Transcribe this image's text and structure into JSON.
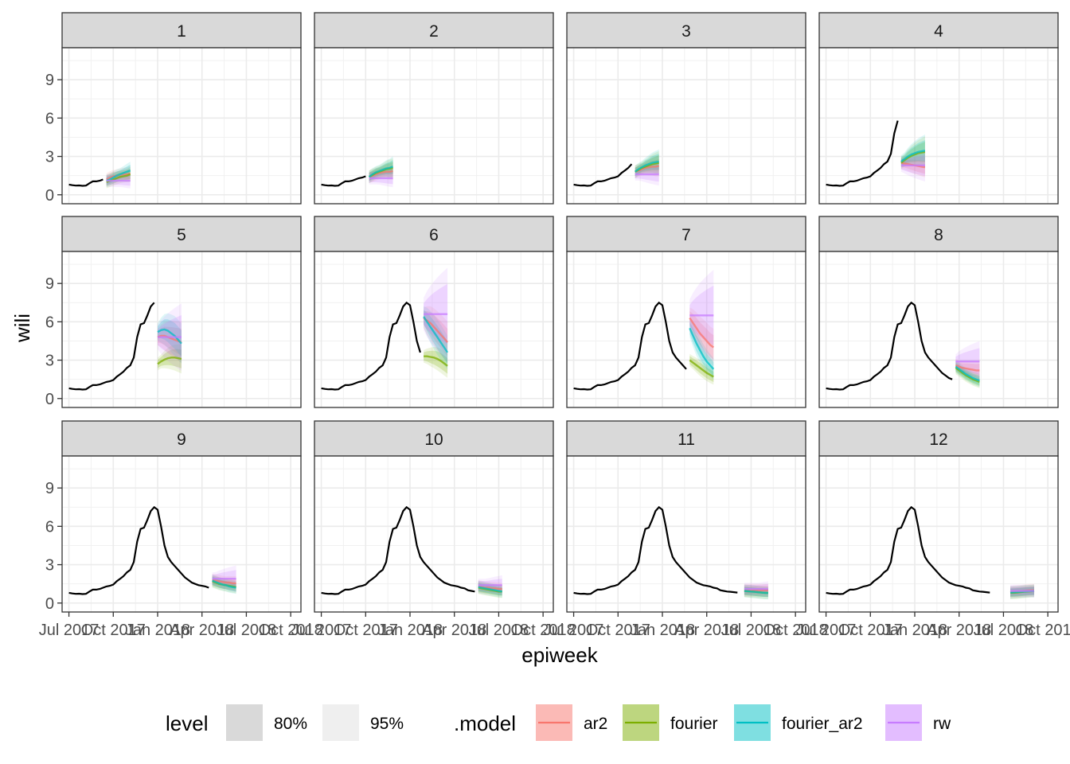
{
  "chart_data": {
    "type": "line",
    "xlabel": "epiweek",
    "ylabel": "wili",
    "x_ticks": [
      "Jul 2017",
      "Oct 2017",
      "Jan 2018",
      "Apr 2018",
      "Jul 2018",
      "Oct 2018"
    ],
    "y_ticks": [
      "0",
      "3",
      "6",
      "9"
    ],
    "ylim": [
      -0.7,
      11.5
    ],
    "xlim_weeks": [
      -2,
      68
    ],
    "grid": true,
    "legend_position": "bottom",
    "history": {
      "x_weeks": [
        0,
        1,
        2,
        3,
        4,
        5,
        6,
        7,
        8,
        9,
        10,
        11,
        12,
        13,
        14,
        15,
        16,
        17,
        18,
        19,
        20,
        21,
        22,
        23,
        24,
        25,
        26,
        27,
        28,
        29,
        30,
        31,
        32,
        33,
        34,
        35,
        36,
        37,
        38,
        39,
        40,
        41,
        42,
        43,
        44,
        45,
        46,
        47,
        48
      ],
      "wili": [
        0.8,
        0.75,
        0.72,
        0.73,
        0.7,
        0.72,
        0.9,
        1.05,
        1.05,
        1.1,
        1.2,
        1.3,
        1.35,
        1.45,
        1.7,
        1.9,
        2.1,
        2.4,
        2.6,
        3.2,
        4.8,
        5.8,
        5.9,
        6.5,
        7.2,
        7.5,
        7.3,
        6.0,
        4.5,
        3.6,
        3.2,
        2.9,
        2.6,
        2.3,
        2.0,
        1.8,
        1.6,
        1.5,
        1.4,
        1.35,
        1.3,
        1.2,
        1.15,
        1.0,
        0.95,
        0.9,
        0.88,
        0.85,
        0.82
      ]
    },
    "models": [
      {
        "name": "ar2",
        "color": "#F8766D"
      },
      {
        "name": "fourier",
        "color": "#7CAE00"
      },
      {
        "name": "fourier_ar2",
        "color": "#00BFC4"
      },
      {
        "name": "rw",
        "color": "#C77CFF"
      }
    ],
    "levels": [
      {
        "name": "80%",
        "swatch": "#d9d9d9"
      },
      {
        "name": "95%",
        "swatch": "#efefef"
      }
    ],
    "facets": [
      {
        "label": "1",
        "cutoff": 10,
        "forecasts": {
          "ar2": [
            1.2,
            1.35,
            1.45,
            1.5,
            1.55,
            1.6,
            1.6,
            1.65
          ],
          "fourier": [
            1.0,
            1.1,
            1.2,
            1.3,
            1.4,
            1.45,
            1.5,
            1.6
          ],
          "fourier_ar2": [
            1.1,
            1.2,
            1.35,
            1.5,
            1.6,
            1.7,
            1.8,
            1.9
          ],
          "rw": [
            1.1,
            1.1,
            1.1,
            1.1,
            1.1,
            1.1,
            1.1,
            1.1
          ]
        }
      },
      {
        "label": "2",
        "cutoff": 13,
        "forecasts": {
          "ar2": [
            1.4,
            1.5,
            1.6,
            1.7,
            1.75,
            1.8,
            1.8,
            1.85
          ],
          "fourier": [
            1.4,
            1.55,
            1.7,
            1.8,
            1.9,
            2.0,
            2.05,
            2.1
          ],
          "fourier_ar2": [
            1.4,
            1.6,
            1.75,
            1.85,
            1.95,
            2.05,
            2.1,
            2.2
          ],
          "rw": [
            1.3,
            1.3,
            1.3,
            1.3,
            1.3,
            1.3,
            1.3,
            1.3
          ]
        }
      },
      {
        "label": "3",
        "cutoff": 17,
        "forecasts": {
          "ar2": [
            1.8,
            1.9,
            2.0,
            2.1,
            2.15,
            2.2,
            2.2,
            2.25
          ],
          "fourier": [
            1.8,
            1.95,
            2.1,
            2.2,
            2.3,
            2.4,
            2.45,
            2.5
          ],
          "fourier_ar2": [
            1.8,
            2.0,
            2.15,
            2.3,
            2.4,
            2.5,
            2.55,
            2.6
          ],
          "rw": [
            1.6,
            1.6,
            1.6,
            1.6,
            1.6,
            1.6,
            1.6,
            1.6
          ]
        }
      },
      {
        "label": "4",
        "cutoff": 21,
        "forecasts": {
          "ar2": [
            2.5,
            2.45,
            2.4,
            2.35,
            2.3,
            2.25,
            2.2,
            2.15
          ],
          "fourier": [
            2.5,
            2.7,
            2.9,
            3.05,
            3.15,
            3.25,
            3.3,
            3.35
          ],
          "fourier_ar2": [
            2.6,
            2.8,
            3.0,
            3.15,
            3.25,
            3.35,
            3.4,
            3.45
          ],
          "rw": [
            2.3,
            2.3,
            2.3,
            2.3,
            2.3,
            2.3,
            2.3,
            2.3
          ]
        }
      },
      {
        "label": "5",
        "cutoff": 25,
        "forecasts": {
          "ar2": [
            4.8,
            4.9,
            4.9,
            4.8,
            4.7,
            4.6,
            4.5,
            4.4
          ],
          "fourier": [
            2.7,
            2.9,
            3.05,
            3.15,
            3.2,
            3.2,
            3.15,
            3.1
          ],
          "fourier_ar2": [
            5.2,
            5.35,
            5.4,
            5.3,
            5.1,
            4.9,
            4.6,
            4.3
          ],
          "rw": [
            4.8,
            4.8,
            4.8,
            4.8,
            4.8,
            4.8,
            4.8,
            4.8
          ]
        }
      },
      {
        "label": "6",
        "cutoff": 29,
        "forecasts": {
          "ar2": [
            6.3,
            6.1,
            5.9,
            5.6,
            5.3,
            5.0,
            4.7,
            4.4
          ],
          "fourier": [
            3.3,
            3.3,
            3.25,
            3.2,
            3.1,
            2.95,
            2.75,
            2.55
          ],
          "fourier_ar2": [
            6.4,
            6.0,
            5.6,
            5.2,
            4.8,
            4.4,
            4.0,
            3.6
          ],
          "rw": [
            6.6,
            6.6,
            6.6,
            6.6,
            6.6,
            6.6,
            6.6,
            6.6
          ]
        }
      },
      {
        "label": "7",
        "cutoff": 33,
        "forecasts": {
          "ar2": [
            6.3,
            5.9,
            5.5,
            5.1,
            4.8,
            4.5,
            4.2,
            4.0
          ],
          "fourier": [
            3.0,
            2.8,
            2.6,
            2.4,
            2.2,
            2.0,
            1.85,
            1.7
          ],
          "fourier_ar2": [
            5.5,
            4.9,
            4.3,
            3.8,
            3.3,
            2.9,
            2.6,
            2.3
          ],
          "rw": [
            6.5,
            6.5,
            6.5,
            6.5,
            6.5,
            6.5,
            6.5,
            6.5
          ]
        }
      },
      {
        "label": "8",
        "cutoff": 37,
        "forecasts": {
          "ar2": [
            2.6,
            2.5,
            2.4,
            2.35,
            2.3,
            2.25,
            2.2,
            2.2
          ],
          "fourier": [
            2.4,
            2.2,
            2.0,
            1.8,
            1.65,
            1.5,
            1.4,
            1.3
          ],
          "fourier_ar2": [
            2.5,
            2.3,
            2.1,
            1.9,
            1.75,
            1.6,
            1.5,
            1.4
          ],
          "rw": [
            2.9,
            2.9,
            2.9,
            2.9,
            2.9,
            2.9,
            2.9,
            2.9
          ]
        }
      },
      {
        "label": "9",
        "cutoff": 41,
        "forecasts": {
          "ar2": [
            1.8,
            1.75,
            1.7,
            1.65,
            1.6,
            1.6,
            1.55,
            1.55
          ],
          "fourier": [
            1.7,
            1.6,
            1.5,
            1.45,
            1.4,
            1.35,
            1.3,
            1.25
          ],
          "fourier_ar2": [
            1.75,
            1.65,
            1.55,
            1.45,
            1.4,
            1.3,
            1.25,
            1.2
          ],
          "rw": [
            1.9,
            1.9,
            1.9,
            1.9,
            1.9,
            1.9,
            1.9,
            1.9
          ]
        }
      },
      {
        "label": "10",
        "cutoff": 45,
        "forecasts": {
          "ar2": [
            1.3,
            1.25,
            1.2,
            1.2,
            1.15,
            1.15,
            1.1,
            1.1
          ],
          "fourier": [
            1.2,
            1.15,
            1.1,
            1.05,
            1.0,
            0.95,
            0.9,
            0.9
          ],
          "fourier_ar2": [
            1.25,
            1.2,
            1.15,
            1.1,
            1.05,
            1.0,
            0.95,
            0.9
          ],
          "rw": [
            1.4,
            1.4,
            1.4,
            1.4,
            1.4,
            1.4,
            1.4,
            1.4
          ]
        }
      },
      {
        "label": "11",
        "cutoff": 49,
        "forecasts": {
          "ar2": [
            1.0,
            1.0,
            1.0,
            1.0,
            1.0,
            1.0,
            1.0,
            1.0
          ],
          "fourier": [
            0.95,
            0.92,
            0.9,
            0.88,
            0.85,
            0.83,
            0.8,
            0.8
          ],
          "fourier_ar2": [
            0.95,
            0.93,
            0.9,
            0.88,
            0.85,
            0.82,
            0.8,
            0.78
          ],
          "rw": [
            1.1,
            1.1,
            1.1,
            1.1,
            1.1,
            1.1,
            1.1,
            1.1
          ]
        }
      },
      {
        "label": "12",
        "cutoff": 53,
        "forecasts": {
          "ar2": [
            0.85,
            0.88,
            0.9,
            0.92,
            0.95,
            0.98,
            1.0,
            1.0
          ],
          "fourier": [
            0.8,
            0.8,
            0.82,
            0.85,
            0.88,
            0.9,
            0.92,
            0.95
          ],
          "fourier_ar2": [
            0.82,
            0.84,
            0.86,
            0.88,
            0.9,
            0.92,
            0.94,
            0.95
          ],
          "rw": [
            0.95,
            0.95,
            0.95,
            0.95,
            0.95,
            0.95,
            0.95,
            0.95
          ]
        }
      }
    ]
  }
}
